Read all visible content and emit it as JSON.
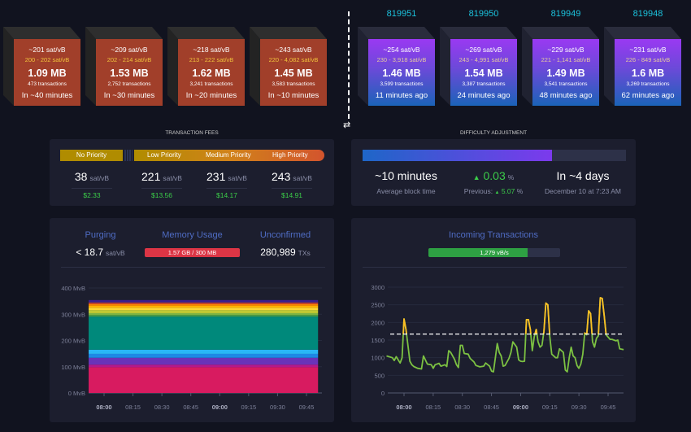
{
  "mempool_blocks": [
    {
      "median_fee": "~201 sat/vB",
      "fee_range": "200 - 202 sat/vB",
      "size": "1.09 MB",
      "tx_count": "473 transactions",
      "eta": "In ~40 minutes"
    },
    {
      "median_fee": "~209 sat/vB",
      "fee_range": "202 - 214 sat/vB",
      "size": "1.53 MB",
      "tx_count": "2,752 transactions",
      "eta": "In ~30 minutes"
    },
    {
      "median_fee": "~218 sat/vB",
      "fee_range": "213 - 222 sat/vB",
      "size": "1.62 MB",
      "tx_count": "3,241 transactions",
      "eta": "In ~20 minutes"
    },
    {
      "median_fee": "~243 sat/vB",
      "fee_range": "220 - 4,082 sat/vB",
      "size": "1.45 MB",
      "tx_count": "3,583 transactions",
      "eta": "In ~10 minutes"
    }
  ],
  "mined_blocks": [
    {
      "height": "819951",
      "median_fee": "~254 sat/vB",
      "fee_range": "230 - 3,918 sat/vB",
      "size": "1.46 MB",
      "tx_count": "3,599 transactions",
      "age": "11 minutes ago"
    },
    {
      "height": "819950",
      "median_fee": "~269 sat/vB",
      "fee_range": "243 - 4,991 sat/vB",
      "size": "1.54 MB",
      "tx_count": "3,387 transactions",
      "age": "24 minutes ago"
    },
    {
      "height": "819949",
      "median_fee": "~229 sat/vB",
      "fee_range": "221 - 1,141 sat/vB",
      "size": "1.49 MB",
      "tx_count": "3,541 transactions",
      "age": "48 minutes ago"
    },
    {
      "height": "819948",
      "median_fee": "~231 sat/vB",
      "fee_range": "226 - 849 sat/vB",
      "size": "1.6 MB",
      "tx_count": "3,269 transactions",
      "age": "62 minutes ago"
    }
  ],
  "swap_icon": "arrows-left-right-icon",
  "fees": {
    "title": "TRANSACTION FEES",
    "no_priority": "No Priority",
    "low": "Low Priority",
    "medium": "Medium Priority",
    "high": "High Priority",
    "unit": "sat/vB",
    "values": [
      {
        "fee": "38",
        "fiat": "$2.33"
      },
      {
        "fee": "221",
        "fiat": "$13.56"
      },
      {
        "fee": "231",
        "fiat": "$14.17"
      },
      {
        "fee": "243",
        "fiat": "$14.91"
      }
    ]
  },
  "difficulty": {
    "title": "DIFFICULTY ADJUSTMENT",
    "progress_percent": 72,
    "avg_block_time": "~10 minutes",
    "avg_block_time_label": "Average block time",
    "change": "0.03",
    "change_unit": "%",
    "previous_label": "Previous:",
    "previous": "5.07",
    "previous_unit": "%",
    "eta": "In ~4 days",
    "eta_date": "December 10 at 7:23 AM"
  },
  "mempool": {
    "purging_label": "Purging",
    "purging_value": "< 18.7",
    "purging_unit": "sat/vB",
    "memory_label": "Memory Usage",
    "memory_value": "1.57 GB / 300 MB",
    "unconfirmed_label": "Unconfirmed",
    "unconfirmed_value": "280,989",
    "unconfirmed_unit": "TXs"
  },
  "incoming": {
    "label": "Incoming Transactions",
    "rate": "1,279 vB/s",
    "rate_fill_percent": 75
  },
  "colors": {
    "accent": "#4f6cc4",
    "green": "#3bcc49",
    "memory_bar": "#dc3545",
    "block_mempool": "#a13f2a"
  },
  "chart_data": [
    {
      "type": "area",
      "stacked": true,
      "y_ticks": [
        "0 MvB",
        "100 MvB",
        "200 MvB",
        "300 MvB",
        "400 MvB"
      ],
      "ylim": [
        0,
        400
      ],
      "x_ticks": [
        "08:00",
        "08:15",
        "08:30",
        "08:45",
        "09:00",
        "09:15",
        "09:30",
        "09:45"
      ],
      "bold_ticks": [
        "08:00",
        "09:00"
      ],
      "x_range": [
        "07:52",
        "09:51"
      ],
      "bands_mvb": [
        {
          "value": 98,
          "color": "#d81b60"
        },
        {
          "value": 10,
          "color": "#b5198c"
        },
        {
          "value": 26,
          "color": "#6a33b8"
        },
        {
          "value": 15,
          "color": "#1e88e5"
        },
        {
          "value": 16,
          "color": "#29b6f6"
        },
        {
          "value": 126,
          "color": "#00897b"
        },
        {
          "value": 6,
          "color": "#43a047"
        },
        {
          "value": 7,
          "color": "#7cb342"
        },
        {
          "value": 12,
          "color": "#c0ca33"
        },
        {
          "value": 9,
          "color": "#fdd835"
        },
        {
          "value": 7,
          "color": "#ffb300"
        },
        {
          "value": 6,
          "color": "#fb8c00"
        },
        {
          "value": 7,
          "color": "#c2452b"
        },
        {
          "value": 9,
          "color": "#3a1f8f"
        }
      ]
    },
    {
      "type": "line",
      "y_ticks": [
        "0",
        "500",
        "1000",
        "1500",
        "2000",
        "2500",
        "3000"
      ],
      "ylim": [
        0,
        3000
      ],
      "x_ticks": [
        "08:00",
        "08:15",
        "08:30",
        "08:45",
        "09:00",
        "09:15",
        "09:30",
        "09:45"
      ],
      "bold_ticks": [
        "08:00",
        "09:00"
      ],
      "threshold": 1670,
      "line_color": "#7cc142",
      "above_color": "#fbbf24",
      "points": [
        [
          "07:51",
          1050
        ],
        [
          "07:54",
          1000
        ],
        [
          "07:55",
          920
        ],
        [
          "07:56",
          1030
        ],
        [
          "07:58",
          850
        ],
        [
          "07:59",
          1000
        ],
        [
          "08:00",
          2100
        ],
        [
          "08:01",
          1800
        ],
        [
          "08:03",
          900
        ],
        [
          "08:04",
          800
        ],
        [
          "08:05",
          750
        ],
        [
          "08:07",
          700
        ],
        [
          "08:09",
          680
        ],
        [
          "08:10",
          1050
        ],
        [
          "08:12",
          820
        ],
        [
          "08:14",
          800
        ],
        [
          "08:15",
          700
        ],
        [
          "08:16",
          800
        ],
        [
          "08:18",
          840
        ],
        [
          "08:19",
          760
        ],
        [
          "08:21",
          800
        ],
        [
          "08:22",
          750
        ],
        [
          "08:23",
          1200
        ],
        [
          "08:24",
          1150
        ],
        [
          "08:26",
          950
        ],
        [
          "08:27",
          800
        ],
        [
          "08:28",
          720
        ],
        [
          "08:29",
          1350
        ],
        [
          "08:30",
          1350
        ],
        [
          "08:31",
          1120
        ],
        [
          "08:33",
          1100
        ],
        [
          "08:34",
          980
        ],
        [
          "08:36",
          880
        ],
        [
          "08:37",
          780
        ],
        [
          "08:39",
          740
        ],
        [
          "08:41",
          760
        ],
        [
          "08:42",
          850
        ],
        [
          "08:44",
          760
        ],
        [
          "08:45",
          620
        ],
        [
          "08:46",
          600
        ],
        [
          "08:48",
          1400
        ],
        [
          "08:49",
          1150
        ],
        [
          "08:50",
          1050
        ],
        [
          "08:51",
          760
        ],
        [
          "08:52",
          780
        ],
        [
          "08:54",
          980
        ],
        [
          "08:55",
          1150
        ],
        [
          "08:56",
          1450
        ],
        [
          "08:58",
          1300
        ],
        [
          "08:59",
          940
        ],
        [
          "09:00",
          900
        ],
        [
          "09:01",
          890
        ],
        [
          "09:02",
          900
        ],
        [
          "09:03",
          2080
        ],
        [
          "09:04",
          2080
        ],
        [
          "09:05",
          1800
        ],
        [
          "09:06",
          1200
        ],
        [
          "09:07",
          1600
        ],
        [
          "09:08",
          1800
        ],
        [
          "09:09",
          1450
        ],
        [
          "09:10",
          1300
        ],
        [
          "09:11",
          1350
        ],
        [
          "09:12",
          1750
        ],
        [
          "09:13",
          2550
        ],
        [
          "09:14",
          2500
        ],
        [
          "09:15",
          1600
        ],
        [
          "09:16",
          1100
        ],
        [
          "09:18",
          1000
        ],
        [
          "09:19",
          1000
        ],
        [
          "09:20",
          1250
        ],
        [
          "09:21",
          1200
        ],
        [
          "09:22",
          1150
        ],
        [
          "09:23",
          650
        ],
        [
          "09:24",
          600
        ],
        [
          "09:25",
          1000
        ],
        [
          "09:26",
          1300
        ],
        [
          "09:27",
          1050
        ],
        [
          "09:28",
          1000
        ],
        [
          "09:29",
          780
        ],
        [
          "09:30",
          700
        ],
        [
          "09:31",
          820
        ],
        [
          "09:32",
          1100
        ],
        [
          "09:33",
          1700
        ],
        [
          "09:34",
          1650
        ],
        [
          "09:35",
          2330
        ],
        [
          "09:36",
          2250
        ],
        [
          "09:37",
          1450
        ],
        [
          "09:38",
          1300
        ],
        [
          "09:39",
          1550
        ],
        [
          "09:40",
          1620
        ],
        [
          "09:41",
          2700
        ],
        [
          "09:42",
          2680
        ],
        [
          "09:43",
          2200
        ],
        [
          "09:44",
          1650
        ],
        [
          "09:46",
          1520
        ],
        [
          "09:47",
          1520
        ],
        [
          "09:49",
          1480
        ],
        [
          "09:50",
          1500
        ],
        [
          "09:51",
          1250
        ],
        [
          "09:53",
          1230
        ]
      ]
    }
  ]
}
